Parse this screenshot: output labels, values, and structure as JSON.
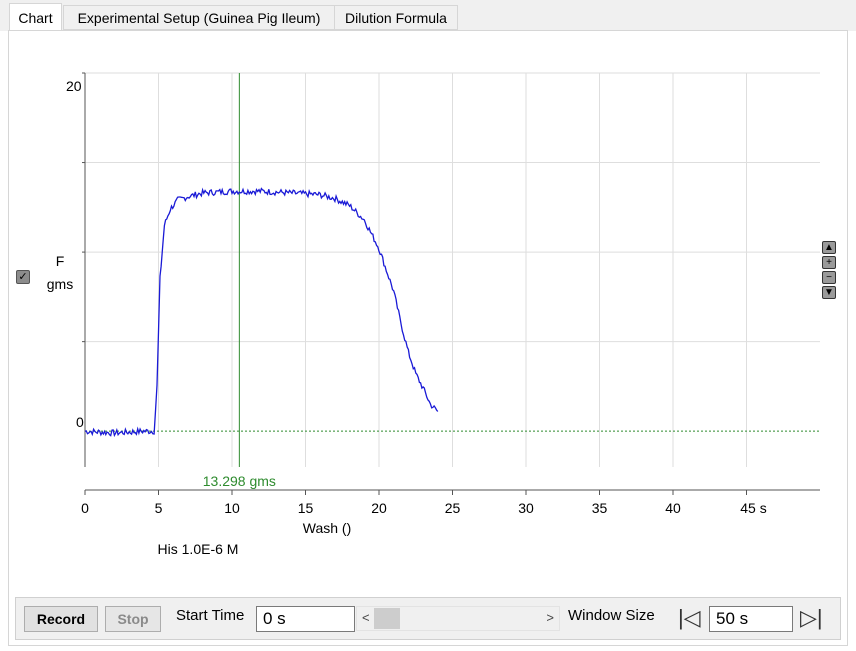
{
  "tabs": [
    {
      "label": "Chart",
      "active": true
    },
    {
      "label": "Experimental Setup (Guinea Pig Ileum)",
      "active": false
    },
    {
      "label": "Dilution Formula",
      "active": false
    }
  ],
  "chart": {
    "y_label_line1": "F",
    "y_label_line2": "gms",
    "y_ticks": [
      "20",
      "0"
    ],
    "x_axis_label": "Wash ()",
    "annotation": "His 1.0E-6 M",
    "cursor_readout": "13.298 gms",
    "checkbox_checked": true,
    "trace_color": "#1a1ad6",
    "cursor_color": "#2e8b2e",
    "zoom_buttons": [
      "up-arrow-icon",
      "plus-icon",
      "minus-icon",
      "down-arrow-icon"
    ]
  },
  "chart_data": {
    "type": "line",
    "xlabel": "Wash ()",
    "ylabel": "F gms",
    "xlim": [
      0,
      50
    ],
    "ylim": [
      -2,
      20
    ],
    "x_tick_labels": [
      "0",
      "5",
      "10",
      "15",
      "20",
      "25",
      "30",
      "35",
      "40",
      "45 s"
    ],
    "y_tick_labels": [
      "20",
      "0"
    ],
    "grid": true,
    "cursor_x": 10.5,
    "cursor_value_label": "13.298 gms",
    "baseline_y": 0,
    "series": [
      {
        "x": [
          0,
          2,
          4,
          4.7,
          4.9,
          5.1,
          5.4,
          5.8,
          6.3,
          7,
          8,
          10,
          12,
          14,
          16,
          17,
          18,
          19,
          20,
          21,
          21.5,
          22,
          22.5,
          23,
          23.5,
          24
        ],
        "y": [
          0,
          -0.1,
          0,
          0,
          2.5,
          8.5,
          11.5,
          12.4,
          12.9,
          13.1,
          13.3,
          13.4,
          13.4,
          13.3,
          13.2,
          13.0,
          12.6,
          11.8,
          10.2,
          7.8,
          6.0,
          4.4,
          3.2,
          2.4,
          1.5,
          1.1
        ]
      }
    ]
  },
  "controls": {
    "record_label": "Record",
    "stop_label": "Stop",
    "start_time_label": "Start Time",
    "start_time_value": "0 s",
    "window_size_label": "Window Size",
    "window_size_value": "50 s",
    "scroll_left": "<",
    "scroll_right": ">",
    "nav_first": "|◁",
    "nav_last": "▷|"
  }
}
